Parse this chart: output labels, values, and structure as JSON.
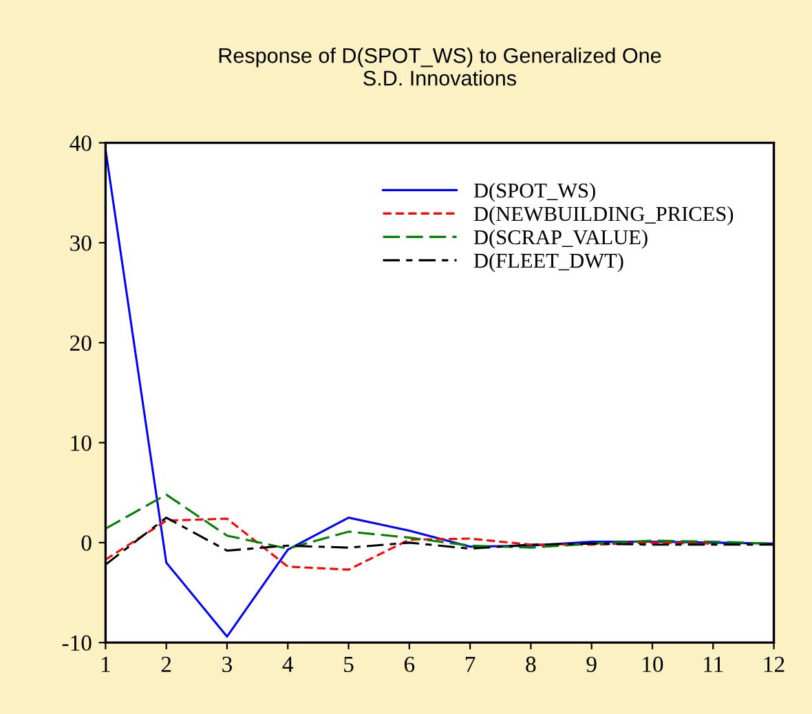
{
  "chart_data": {
    "type": "line",
    "title": "Response of D(SPOT_WS) to Generalized One\nS.D. Innovations",
    "x": [
      1,
      2,
      3,
      4,
      5,
      6,
      7,
      8,
      9,
      10,
      11,
      12
    ],
    "series": [
      {
        "name": "D(SPOT_WS)",
        "color": "#0000ff",
        "line_style": "solid",
        "values": [
          39.3,
          -2.0,
          -9.4,
          -0.7,
          2.5,
          1.2,
          -0.4,
          -0.3,
          0.1,
          0.1,
          0.0,
          -0.1
        ]
      },
      {
        "name": "D(NEWBUILDING_PRICES)",
        "color": "#ff0000",
        "line_style": "dashed",
        "values": [
          -1.7,
          2.2,
          2.4,
          -2.4,
          -2.7,
          0.3,
          0.4,
          -0.2,
          -0.2,
          0.0,
          -0.1,
          null
        ]
      },
      {
        "name": "D(SCRAP_VALUE)",
        "color": "#008000",
        "line_style": "dashed",
        "values": [
          1.4,
          4.8,
          0.7,
          -0.6,
          1.1,
          0.5,
          -0.3,
          -0.5,
          -0.1,
          0.2,
          0.1,
          -0.1
        ]
      },
      {
        "name": "D(FLEET_DWT)",
        "color": "#000000",
        "line_style": "dashdot",
        "values": [
          -2.2,
          2.5,
          -0.8,
          -0.3,
          -0.5,
          0.0,
          -0.6,
          -0.2,
          -0.1,
          -0.2,
          -0.2,
          -0.2
        ]
      }
    ],
    "xlim": [
      1,
      12
    ],
    "xticks": [
      1,
      2,
      3,
      4,
      5,
      6,
      7,
      8,
      9,
      10,
      11,
      12
    ],
    "ylim": [
      -10,
      40
    ],
    "yticks": [
      -10,
      0,
      10,
      20,
      30,
      40
    ],
    "grid": false,
    "legend": "top right"
  }
}
